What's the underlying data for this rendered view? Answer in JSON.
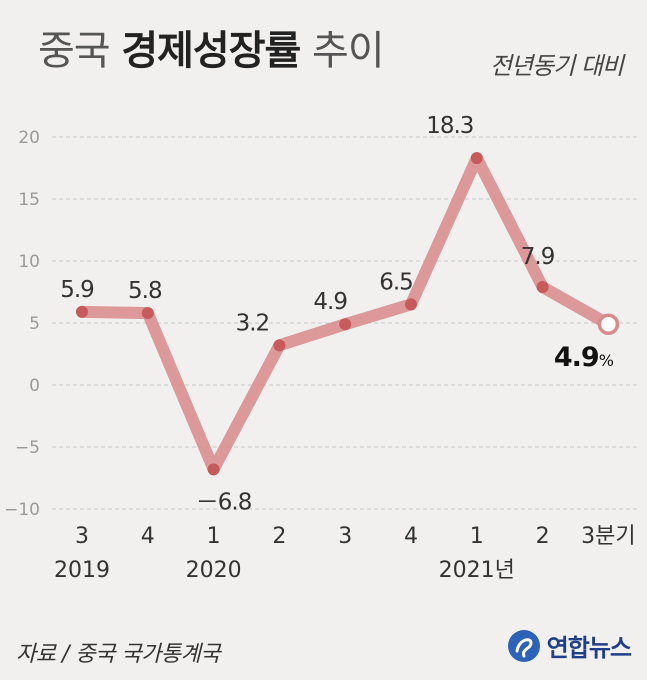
{
  "header": {
    "title_part1": "중국",
    "title_bold": "경제성장률",
    "title_part2": "추이",
    "subtitle": "전년동기 대비"
  },
  "chart_data": {
    "type": "line",
    "title": "중국 경제성장률 추이",
    "subtitle": "전년동기 대비",
    "ylim": [
      -10,
      20
    ],
    "y_ticks": [
      "20",
      "15",
      "10",
      "5",
      "0",
      "−5",
      "−10"
    ],
    "y_tick_values": [
      20,
      15,
      10,
      5,
      0,
      -5,
      -10
    ],
    "categories": [
      "3",
      "4",
      "1",
      "2",
      "3",
      "4",
      "1",
      "2",
      "3분기"
    ],
    "year_labels": [
      {
        "label": "2019",
        "under": 0
      },
      {
        "label": "2020",
        "under": 2
      },
      {
        "label": "2021년",
        "under": 6
      }
    ],
    "values": [
      5.9,
      5.8,
      -6.8,
      3.2,
      4.9,
      6.5,
      18.3,
      7.9,
      4.9
    ],
    "data_labels": [
      "5.9",
      "5.8",
      "－6.8",
      "3.2",
      "4.9",
      "6.5",
      "18.3",
      "7.9",
      "4.9"
    ],
    "last_unit": "%",
    "grid": true,
    "line_color": "#d98a8a",
    "point_color": "#c75a5a"
  },
  "footer": {
    "source": "자료 / 중국 국가통계국",
    "logo_text": "연합뉴스"
  }
}
